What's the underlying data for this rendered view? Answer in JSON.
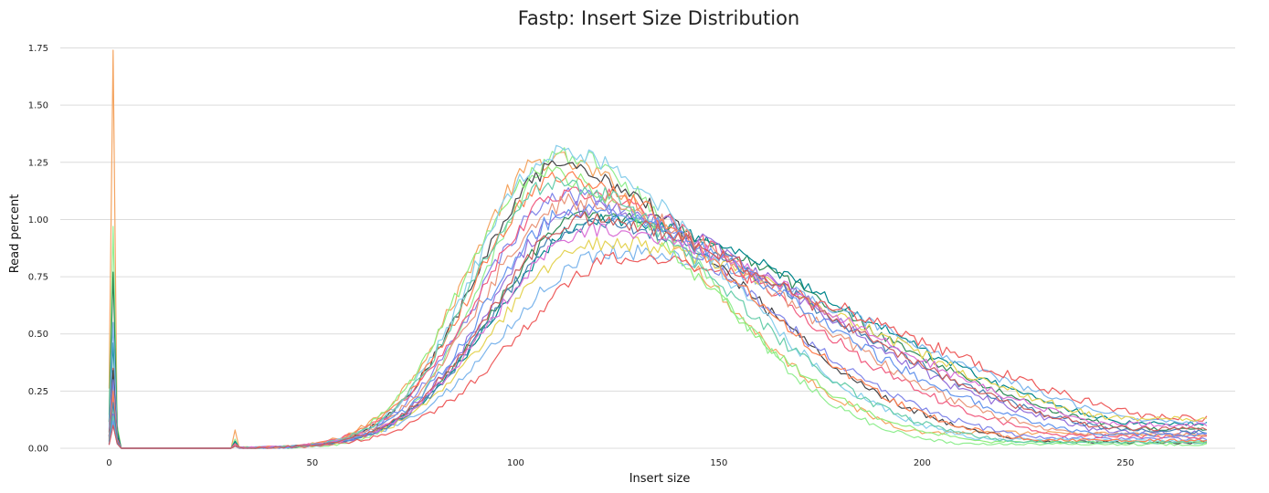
{
  "chart_data": {
    "type": "line",
    "title": "Fastp: Insert Size Distribution",
    "xlabel": "Insert size",
    "ylabel": "Read percent",
    "xlim": [
      -12,
      277
    ],
    "ylim": [
      0,
      1.8
    ],
    "xticks": [
      0,
      50,
      100,
      150,
      200,
      250
    ],
    "yticks": [
      "0.00",
      "0.25",
      "0.50",
      "0.75",
      "1.00",
      "1.25",
      "1.50",
      "1.75"
    ],
    "grid": true,
    "legend": "none",
    "series": [
      {
        "color": "#f4a460",
        "spike0": 1.74,
        "spike1": 0.05,
        "bump31": 0.08,
        "peak_x": 108,
        "peak_y": 1.26,
        "left_width": 20,
        "right_width": 38,
        "tail": 0.07,
        "noise": 0.045
      },
      {
        "color": "#90ee90",
        "spike0": 0.97,
        "spike1": 0.1,
        "bump31": 0.04,
        "peak_x": 112,
        "peak_y": 1.28,
        "left_width": 19,
        "right_width": 34,
        "tail": 0.02,
        "noise": 0.04
      },
      {
        "color": "#2e8b57",
        "spike0": 0.77,
        "spike1": 0.08,
        "bump31": 0.03,
        "peak_x": 118,
        "peak_y": 1.02,
        "left_width": 23,
        "right_width": 60,
        "tail": 0.1,
        "noise": 0.03
      },
      {
        "color": "#00868b",
        "spike0": 0.46,
        "spike1": 0.06,
        "bump31": 0.03,
        "peak_x": 120,
        "peak_y": 1.0,
        "left_width": 24,
        "right_width": 62,
        "tail": 0.13,
        "noise": 0.03
      },
      {
        "color": "#7cb5ec",
        "spike0": 0.55,
        "spike1": 0.05,
        "bump31": 0.02,
        "peak_x": 124,
        "peak_y": 0.86,
        "left_width": 26,
        "right_width": 66,
        "tail": 0.14,
        "noise": 0.035
      },
      {
        "color": "#ee5c5c",
        "spike0": 0.35,
        "spike1": 0.04,
        "bump31": 0.02,
        "peak_x": 127,
        "peak_y": 0.83,
        "left_width": 26,
        "right_width": 68,
        "tail": 0.16,
        "noise": 0.035
      },
      {
        "color": "#434348",
        "spike0": 0.34,
        "spike1": 0.05,
        "bump31": 0.02,
        "peak_x": 110,
        "peak_y": 1.22,
        "left_width": 20,
        "right_width": 44,
        "tail": 0.03,
        "noise": 0.04
      },
      {
        "color": "#e4d354",
        "spike0": 0.28,
        "spike1": 0.04,
        "bump31": 0.02,
        "peak_x": 120,
        "peak_y": 0.9,
        "left_width": 24,
        "right_width": 64,
        "tail": 0.15,
        "noise": 0.035
      },
      {
        "color": "#8085e9",
        "spike0": 0.3,
        "spike1": 0.04,
        "bump31": 0.02,
        "peak_x": 112,
        "peak_y": 1.1,
        "left_width": 21,
        "right_width": 46,
        "tail": 0.05,
        "noise": 0.04
      },
      {
        "color": "#f15c80",
        "spike0": 0.22,
        "spike1": 0.04,
        "bump31": 0.02,
        "peak_x": 113,
        "peak_y": 1.12,
        "left_width": 22,
        "right_width": 50,
        "tail": 0.06,
        "noise": 0.04
      },
      {
        "color": "#90ed7d",
        "spike0": 0.18,
        "spike1": 0.03,
        "bump31": 0.01,
        "peak_x": 106,
        "peak_y": 1.2,
        "left_width": 19,
        "right_width": 40,
        "tail": 0.03,
        "noise": 0.04
      },
      {
        "color": "#87ceeb",
        "spike0": 0.2,
        "spike1": 0.03,
        "bump31": 0.01,
        "peak_x": 110,
        "peak_y": 1.3,
        "left_width": 20,
        "right_width": 40,
        "tail": 0.04,
        "noise": 0.045
      },
      {
        "color": "#9370db",
        "spike0": 0.15,
        "spike1": 0.03,
        "bump31": 0.01,
        "peak_x": 116,
        "peak_y": 1.05,
        "left_width": 22,
        "right_width": 56,
        "tail": 0.08,
        "noise": 0.04
      },
      {
        "color": "#ff7f50",
        "spike0": 0.25,
        "spike1": 0.03,
        "bump31": 0.01,
        "peak_x": 111,
        "peak_y": 1.18,
        "left_width": 21,
        "right_width": 44,
        "tail": 0.04,
        "noise": 0.04
      },
      {
        "color": "#4682b4",
        "spike0": 0.2,
        "spike1": 0.03,
        "bump31": 0.01,
        "peak_x": 118,
        "peak_y": 0.98,
        "left_width": 23,
        "right_width": 58,
        "tail": 0.09,
        "noise": 0.035
      },
      {
        "color": "#e9967a",
        "spike0": 0.12,
        "spike1": 0.02,
        "bump31": 0.01,
        "peak_x": 114,
        "peak_y": 1.08,
        "left_width": 22,
        "right_width": 52,
        "tail": 0.07,
        "noise": 0.04
      },
      {
        "color": "#66cdaa",
        "spike0": 0.14,
        "spike1": 0.02,
        "bump31": 0.01,
        "peak_x": 109,
        "peak_y": 1.16,
        "left_width": 20,
        "right_width": 42,
        "tail": 0.03,
        "noise": 0.04
      },
      {
        "color": "#da70d6",
        "spike0": 0.1,
        "spike1": 0.02,
        "bump31": 0.01,
        "peak_x": 119,
        "peak_y": 0.96,
        "left_width": 24,
        "right_width": 60,
        "tail": 0.12,
        "noise": 0.035
      },
      {
        "color": "#6495ed",
        "spike0": 0.12,
        "spike1": 0.02,
        "bump31": 0.01,
        "peak_x": 115,
        "peak_y": 1.04,
        "left_width": 22,
        "right_width": 54,
        "tail": 0.07,
        "noise": 0.04
      },
      {
        "color": "#cd5c5c",
        "spike0": 0.1,
        "spike1": 0.02,
        "bump31": 0.01,
        "peak_x": 117,
        "peak_y": 1.0,
        "left_width": 23,
        "right_width": 58,
        "tail": 0.1,
        "noise": 0.035
      }
    ]
  }
}
